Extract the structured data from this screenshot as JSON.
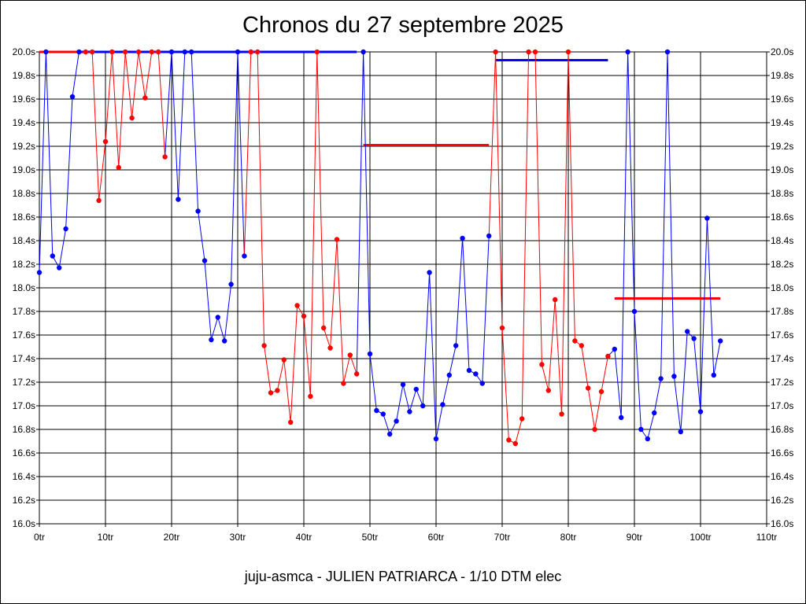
{
  "header": {
    "title": "Chronos du 27 septembre 2025"
  },
  "footer": {
    "subtitle": "juju-asmca - JULIEN PATRIARCA - 1/10 DTM elec"
  },
  "chart_data": {
    "type": "line",
    "title": "Chronos du 27 septembre 2025",
    "subtitle": "juju-asmca - JULIEN PATRIARCA - 1/10 DTM elec",
    "xlabel": "",
    "ylabel": "",
    "xlim": [
      0,
      110
    ],
    "ylim": [
      16.0,
      20.0
    ],
    "grid": true,
    "legend": "none",
    "x_ticks": [
      "0tr",
      "10tr",
      "20tr",
      "30tr",
      "40tr",
      "50tr",
      "60tr",
      "70tr",
      "80tr",
      "90tr",
      "100tr",
      "110tr"
    ],
    "y_ticks": [
      "16.0s",
      "16.2s",
      "16.4s",
      "16.6s",
      "16.8s",
      "17.0s",
      "17.2s",
      "17.4s",
      "17.6s",
      "17.8s",
      "18.0s",
      "18.2s",
      "18.4s",
      "18.6s",
      "18.8s",
      "19.0s",
      "19.2s",
      "19.4s",
      "19.6s",
      "19.8s",
      "20.0s"
    ],
    "colors": {
      "blue": "#0000ff",
      "red": "#ff0000"
    },
    "series": [
      {
        "color": "#0000ff",
        "points": [
          [
            0,
            18.13
          ],
          [
            1,
            20.0
          ],
          [
            2,
            18.27
          ],
          [
            3,
            18.17
          ],
          [
            4,
            18.5
          ],
          [
            5,
            19.62
          ],
          [
            6,
            20.0
          ]
        ]
      },
      {
        "color": "#ff0000",
        "points": [
          [
            7,
            20.0
          ],
          [
            8,
            20.0
          ],
          [
            9,
            18.74
          ],
          [
            10,
            19.24
          ],
          [
            11,
            20.0
          ],
          [
            12,
            19.02
          ],
          [
            13,
            20.0
          ],
          [
            14,
            19.44
          ],
          [
            15,
            20.0
          ],
          [
            16,
            19.61
          ],
          [
            17,
            20.0
          ],
          [
            18,
            20.0
          ],
          [
            19,
            19.11
          ]
        ]
      },
      {
        "color": "#0000ff",
        "points": [
          [
            20,
            20.0
          ],
          [
            21,
            18.75
          ],
          [
            22,
            20.0
          ],
          [
            23,
            20.0
          ],
          [
            24,
            18.65
          ],
          [
            25,
            18.23
          ],
          [
            26,
            17.56
          ],
          [
            27,
            17.75
          ],
          [
            28,
            17.55
          ],
          [
            29,
            18.03
          ],
          [
            30,
            20.0
          ],
          [
            31,
            18.27
          ]
        ]
      },
      {
        "color": "#ff0000",
        "points": [
          [
            32,
            20.0
          ],
          [
            33,
            20.0
          ],
          [
            34,
            17.51
          ],
          [
            35,
            17.11
          ],
          [
            36,
            17.13
          ],
          [
            37,
            17.39
          ],
          [
            38,
            16.86
          ],
          [
            39,
            17.85
          ],
          [
            40,
            17.76
          ],
          [
            41,
            17.08
          ],
          [
            42,
            20.0
          ],
          [
            43,
            17.66
          ],
          [
            44,
            17.49
          ],
          [
            45,
            18.41
          ],
          [
            46,
            17.19
          ],
          [
            47,
            17.43
          ],
          [
            48,
            17.27
          ]
        ]
      },
      {
        "color": "#0000ff",
        "points": [
          [
            49,
            20.0
          ],
          [
            50,
            17.44
          ],
          [
            51,
            16.96
          ],
          [
            52,
            16.93
          ],
          [
            53,
            16.76
          ],
          [
            54,
            16.87
          ],
          [
            55,
            17.18
          ],
          [
            56,
            16.95
          ],
          [
            57,
            17.14
          ],
          [
            58,
            17.0
          ],
          [
            59,
            18.13
          ],
          [
            60,
            16.72
          ],
          [
            61,
            17.01
          ],
          [
            62,
            17.26
          ],
          [
            63,
            17.51
          ],
          [
            64,
            18.42
          ],
          [
            65,
            17.3
          ],
          [
            66,
            17.27
          ],
          [
            67,
            17.19
          ],
          [
            68,
            18.44
          ]
        ]
      },
      {
        "color": "#ff0000",
        "points": [
          [
            69,
            20.0
          ],
          [
            70,
            17.66
          ],
          [
            71,
            16.71
          ],
          [
            72,
            16.68
          ],
          [
            73,
            16.89
          ],
          [
            74,
            20.0
          ],
          [
            75,
            20.0
          ],
          [
            76,
            17.35
          ],
          [
            77,
            17.13
          ],
          [
            78,
            17.9
          ],
          [
            79,
            16.93
          ],
          [
            80,
            20.0
          ],
          [
            81,
            17.55
          ],
          [
            82,
            17.51
          ],
          [
            83,
            17.15
          ],
          [
            84,
            16.8
          ],
          [
            85,
            17.12
          ],
          [
            86,
            17.42
          ]
        ]
      },
      {
        "color": "#0000ff",
        "points": [
          [
            87,
            17.48
          ],
          [
            88,
            16.9
          ],
          [
            89,
            20.0
          ],
          [
            90,
            17.8
          ],
          [
            91,
            16.8
          ],
          [
            92,
            16.72
          ],
          [
            93,
            16.94
          ],
          [
            94,
            17.23
          ],
          [
            95,
            20.0
          ],
          [
            96,
            17.25
          ],
          [
            97,
            16.78
          ],
          [
            98,
            17.63
          ],
          [
            99,
            17.57
          ],
          [
            100,
            16.95
          ],
          [
            101,
            18.59
          ],
          [
            102,
            17.26
          ],
          [
            103,
            17.55
          ]
        ]
      }
    ],
    "reference_lines": [
      {
        "color": "#ff0000",
        "x": [
          0,
          30
        ],
        "y": 20.0
      },
      {
        "color": "#0000ff",
        "x": [
          6,
          48
        ],
        "y": 20.0
      },
      {
        "color": "#ff0000",
        "x": [
          49,
          68
        ],
        "y": 19.21
      },
      {
        "color": "#0000ff",
        "x": [
          69,
          86
        ],
        "y": 19.93
      },
      {
        "color": "#ff0000",
        "x": [
          87,
          103
        ],
        "y": 17.91
      }
    ]
  }
}
